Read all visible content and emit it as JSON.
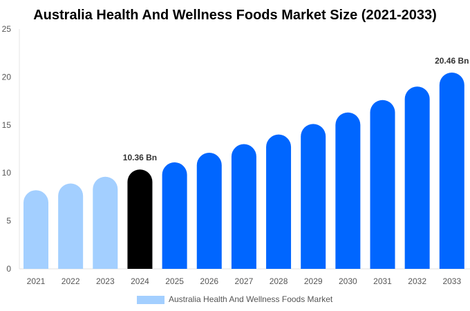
{
  "chart_data": {
    "type": "bar",
    "title": "Australia Health And Wellness Foods Market Size (2021-2033)",
    "categories": [
      "2021",
      "2022",
      "2023",
      "2024",
      "2025",
      "2026",
      "2027",
      "2028",
      "2029",
      "2030",
      "2031",
      "2032",
      "2033"
    ],
    "series": [
      {
        "name": "Australia Health And Wellness Foods Market",
        "values": [
          8.2,
          8.9,
          9.6,
          10.36,
          11.1,
          12.1,
          13.0,
          14.0,
          15.1,
          16.3,
          17.6,
          19.0,
          20.46
        ]
      }
    ],
    "data_labels": {
      "3": "10.36 Bn",
      "12": "20.46 Bn"
    },
    "ylim": [
      0,
      25
    ],
    "yticks": [
      0,
      5,
      10,
      15,
      20,
      25
    ],
    "xlabel": "",
    "ylabel": "",
    "grid": false,
    "legend": "bottom",
    "colors": {
      "historical": "#a3cfff",
      "current": "#000000",
      "forecast": "#0066ff"
    }
  }
}
